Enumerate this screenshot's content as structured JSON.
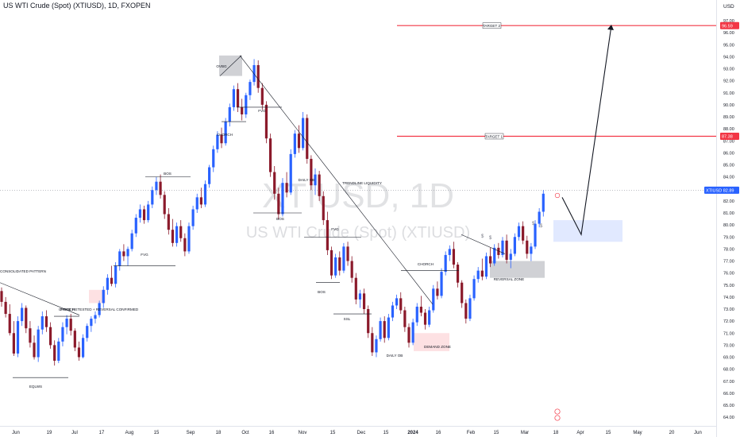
{
  "header": {
    "title": "US WTI Crude (Spot) (XTIUSD), 1D, FXOPEN",
    "currency": "USD"
  },
  "watermark": {
    "symbol": "XTIUSD, 1D",
    "name": "US WTI Crude (Spot) (XTIUSD)"
  },
  "chart_data": {
    "type": "candlestick",
    "title": "US WTI Crude (Spot) (XTIUSD), 1D, FXOPEN",
    "ylim": [
      63.5,
      97.5
    ],
    "y_ticks": [
      64,
      65,
      66,
      67,
      68,
      69,
      70,
      71,
      72,
      73,
      74,
      75,
      76,
      77,
      78,
      79,
      80,
      81,
      82,
      83,
      84,
      85,
      86,
      87,
      88,
      89,
      90,
      91,
      92,
      93,
      94,
      95,
      96,
      97
    ],
    "x_ticks": [
      "Jun",
      "19",
      "Jul",
      "17",
      "Aug",
      "15",
      "Sep",
      "18",
      "Oct",
      "16",
      "Nov",
      "15",
      "Dec",
      "15",
      "2024",
      "16",
      "Feb",
      "15",
      "Mar",
      "18",
      "Apr",
      "15",
      "May",
      "20",
      "Jun"
    ],
    "price_labels": [
      {
        "label": "XTIUSD",
        "value": 82.89,
        "color": "#2962ff"
      },
      {
        "label": "",
        "value": 87.38,
        "color": "#f23645"
      },
      {
        "label": "",
        "value": 96.59,
        "color": "#f23645"
      }
    ],
    "target_lines": [
      {
        "label": "TARGET 1",
        "value": 87.38
      },
      {
        "label": "TARGET 2",
        "value": 96.59
      }
    ],
    "annotations": [
      "CONSOLIDATED PATTERN",
      "EQLWS",
      "CHORCH",
      "PRICE RETESTED + REVERSAL CONFIRMED",
      "FVG",
      "BOS",
      "OVBG",
      "CHORCH",
      "FVG",
      "DAILY OB",
      "TRENDLINE LIQUIDITY",
      "BOS",
      "FVG",
      "BOS",
      "SSL",
      "CHORCH",
      "DAILY OB",
      "DEMAND ZONE",
      "REVERSAL ZONE",
      "$",
      "$",
      "$",
      "$"
    ],
    "zones": [
      {
        "label": "OVBG",
        "from": 92.4,
        "to": 94.1
      },
      {
        "label": "PRICE RETESTED + REVERSAL CONFIRMED",
        "from": 73.5,
        "to": 74.6
      },
      {
        "label": "DEMAND ZONE",
        "from": 69.5,
        "to": 71.0
      },
      {
        "label": "REVERSAL ZONE",
        "from": 75.6,
        "to": 77.0
      },
      {
        "label": "projected entry zone",
        "from": 78.6,
        "to": 80.4
      }
    ],
    "projection": [
      82.3,
      79.2,
      96.6
    ],
    "series": [
      {
        "values": [
          [
            74.5,
            74.8,
            73.2,
            73.6
          ],
          [
            73.6,
            74.0,
            72.3,
            72.6
          ],
          [
            72.6,
            73.4,
            70.8,
            71.0
          ],
          [
            71.0,
            72.0,
            69.1,
            69.3
          ],
          [
            69.3,
            72.4,
            69.0,
            72.0
          ],
          [
            72.0,
            73.5,
            71.6,
            73.1
          ],
          [
            73.1,
            73.3,
            71.0,
            71.4
          ],
          [
            71.4,
            72.0,
            69.8,
            70.2
          ],
          [
            70.2,
            70.8,
            68.8,
            69.0
          ],
          [
            69.0,
            71.6,
            68.6,
            71.3
          ],
          [
            71.3,
            72.8,
            70.9,
            72.4
          ],
          [
            72.4,
            72.9,
            71.1,
            71.5
          ],
          [
            71.5,
            71.9,
            69.7,
            70.0
          ],
          [
            70.0,
            70.4,
            68.3,
            68.7
          ],
          [
            68.7,
            70.6,
            68.5,
            70.3
          ],
          [
            70.3,
            71.9,
            69.9,
            71.5
          ],
          [
            71.5,
            72.5,
            70.9,
            72.2
          ],
          [
            72.2,
            72.6,
            70.8,
            71.2
          ],
          [
            71.2,
            71.4,
            69.5,
            69.8
          ],
          [
            69.8,
            70.3,
            68.7,
            69.0
          ],
          [
            69.0,
            70.9,
            68.9,
            70.6
          ],
          [
            70.6,
            71.8,
            70.3,
            71.6
          ],
          [
            71.6,
            72.4,
            71.1,
            72.2
          ],
          [
            72.2,
            72.8,
            71.8,
            72.5
          ],
          [
            72.5,
            73.7,
            72.3,
            73.5
          ],
          [
            73.5,
            74.9,
            73.1,
            74.6
          ],
          [
            74.6,
            75.9,
            74.2,
            75.6
          ],
          [
            75.6,
            76.6,
            74.9,
            75.1
          ],
          [
            75.1,
            76.9,
            74.8,
            76.6
          ],
          [
            76.6,
            78.0,
            76.2,
            77.8
          ],
          [
            77.8,
            78.4,
            77.0,
            77.4
          ],
          [
            77.4,
            78.2,
            76.6,
            78.0
          ],
          [
            78.0,
            79.6,
            77.8,
            79.3
          ],
          [
            79.3,
            80.9,
            79.0,
            80.6
          ],
          [
            80.6,
            81.7,
            80.2,
            81.3
          ],
          [
            81.3,
            81.6,
            80.1,
            80.4
          ],
          [
            80.4,
            82.0,
            80.2,
            81.7
          ],
          [
            81.7,
            83.2,
            81.4,
            82.9
          ],
          [
            82.9,
            84.0,
            82.5,
            83.6
          ],
          [
            83.6,
            84.2,
            82.2,
            82.5
          ],
          [
            82.5,
            82.8,
            80.5,
            80.9
          ],
          [
            80.9,
            81.4,
            79.2,
            79.6
          ],
          [
            79.6,
            80.5,
            78.2,
            78.5
          ],
          [
            78.5,
            80.2,
            78.2,
            79.9
          ],
          [
            79.9,
            80.4,
            78.6,
            78.9
          ],
          [
            78.9,
            79.3,
            77.4,
            77.8
          ],
          [
            77.8,
            80.2,
            77.6,
            79.9
          ],
          [
            79.9,
            81.6,
            79.6,
            81.3
          ],
          [
            81.3,
            82.6,
            81.0,
            82.3
          ],
          [
            82.3,
            83.1,
            81.4,
            81.7
          ],
          [
            81.7,
            83.7,
            81.5,
            83.4
          ],
          [
            83.4,
            85.0,
            83.1,
            84.8
          ],
          [
            84.8,
            86.6,
            84.4,
            86.3
          ],
          [
            86.3,
            87.8,
            86.0,
            87.5
          ],
          [
            87.5,
            88.1,
            86.4,
            86.8
          ],
          [
            86.8,
            88.9,
            86.6,
            88.6
          ],
          [
            88.6,
            90.1,
            88.2,
            89.8
          ],
          [
            89.8,
            91.6,
            89.5,
            91.3
          ],
          [
            91.3,
            91.8,
            89.4,
            89.8
          ],
          [
            89.8,
            90.5,
            88.7,
            89.2
          ],
          [
            89.2,
            91.0,
            88.9,
            90.8
          ],
          [
            90.8,
            92.1,
            90.4,
            91.9
          ],
          [
            91.9,
            93.8,
            91.6,
            93.3
          ],
          [
            93.3,
            93.7,
            91.0,
            91.4
          ],
          [
            91.4,
            91.8,
            89.6,
            90.0
          ],
          [
            90.0,
            90.3,
            86.8,
            87.2
          ],
          [
            87.2,
            87.6,
            84.0,
            84.4
          ],
          [
            84.4,
            84.9,
            82.1,
            82.6
          ],
          [
            82.6,
            83.1,
            80.5,
            80.9
          ],
          [
            80.9,
            83.9,
            80.7,
            83.5
          ],
          [
            83.5,
            84.4,
            82.3,
            82.7
          ],
          [
            82.7,
            86.3,
            82.5,
            85.9
          ],
          [
            85.9,
            87.9,
            85.6,
            87.6
          ],
          [
            87.6,
            88.3,
            86.0,
            86.4
          ],
          [
            86.4,
            89.4,
            86.2,
            88.9
          ],
          [
            88.9,
            89.2,
            85.1,
            85.5
          ],
          [
            85.5,
            85.8,
            82.9,
            83.3
          ],
          [
            83.3,
            84.7,
            82.5,
            84.2
          ],
          [
            84.2,
            84.5,
            82.0,
            82.4
          ],
          [
            82.4,
            82.8,
            80.0,
            80.4
          ],
          [
            80.4,
            81.1,
            77.5,
            77.9
          ],
          [
            77.9,
            78.2,
            75.5,
            75.8
          ],
          [
            75.8,
            77.6,
            75.6,
            77.3
          ],
          [
            77.3,
            77.8,
            75.8,
            76.2
          ],
          [
            76.2,
            78.5,
            76.0,
            78.2
          ],
          [
            78.2,
            78.6,
            76.6,
            77.0
          ],
          [
            77.0,
            77.4,
            75.2,
            75.6
          ],
          [
            75.6,
            76.0,
            73.4,
            73.8
          ],
          [
            73.8,
            74.6,
            73.1,
            74.3
          ],
          [
            74.3,
            74.7,
            72.6,
            73.0
          ],
          [
            73.0,
            73.3,
            70.6,
            71.0
          ],
          [
            71.0,
            71.5,
            69.1,
            69.4
          ],
          [
            69.4,
            70.8,
            69.0,
            70.5
          ],
          [
            70.5,
            72.3,
            70.3,
            72.0
          ],
          [
            72.0,
            72.4,
            70.2,
            70.6
          ],
          [
            70.6,
            72.6,
            70.4,
            72.3
          ],
          [
            72.3,
            73.6,
            72.0,
            73.3
          ],
          [
            73.3,
            74.2,
            73.0,
            73.9
          ],
          [
            73.9,
            74.4,
            72.6,
            72.9
          ],
          [
            72.9,
            73.2,
            71.1,
            71.5
          ],
          [
            71.5,
            71.8,
            69.8,
            70.2
          ],
          [
            70.2,
            72.2,
            70.0,
            71.9
          ],
          [
            71.9,
            73.5,
            71.6,
            73.2
          ],
          [
            73.2,
            74.1,
            72.4,
            72.7
          ],
          [
            72.7,
            73.0,
            71.3,
            71.7
          ],
          [
            71.7,
            73.2,
            71.5,
            72.9
          ],
          [
            72.9,
            75.0,
            72.7,
            74.7
          ],
          [
            74.7,
            75.3,
            73.8,
            74.1
          ],
          [
            74.1,
            76.4,
            73.9,
            76.1
          ],
          [
            76.1,
            77.8,
            75.8,
            77.5
          ],
          [
            77.5,
            78.3,
            77.0,
            78.0
          ],
          [
            78.0,
            78.6,
            76.4,
            76.7
          ],
          [
            76.7,
            76.9,
            74.8,
            75.2
          ],
          [
            75.2,
            75.4,
            73.1,
            73.5
          ],
          [
            73.5,
            73.8,
            71.8,
            72.2
          ],
          [
            72.2,
            74.2,
            72.0,
            73.9
          ],
          [
            73.9,
            75.8,
            73.7,
            75.5
          ],
          [
            75.5,
            76.5,
            75.2,
            76.2
          ],
          [
            76.2,
            77.2,
            75.4,
            75.7
          ],
          [
            75.7,
            77.7,
            75.5,
            77.4
          ],
          [
            77.4,
            78.1,
            76.5,
            76.8
          ],
          [
            76.8,
            78.4,
            76.6,
            78.1
          ],
          [
            78.1,
            78.5,
            77.2,
            77.5
          ],
          [
            77.5,
            79.0,
            77.3,
            78.7
          ],
          [
            78.7,
            79.2,
            76.8,
            77.1
          ],
          [
            77.1,
            78.0,
            76.4,
            77.6
          ],
          [
            77.6,
            79.3,
            77.4,
            79.0
          ],
          [
            79.0,
            80.2,
            78.7,
            79.9
          ],
          [
            79.9,
            80.3,
            78.4,
            78.7
          ],
          [
            78.7,
            79.1,
            77.2,
            77.6
          ],
          [
            77.6,
            78.5,
            77.0,
            78.2
          ],
          [
            78.2,
            80.4,
            78.0,
            80.1
          ],
          [
            80.1,
            81.4,
            79.8,
            81.1
          ],
          [
            81.1,
            82.9,
            80.7,
            82.6
          ]
        ]
      }
    ]
  }
}
